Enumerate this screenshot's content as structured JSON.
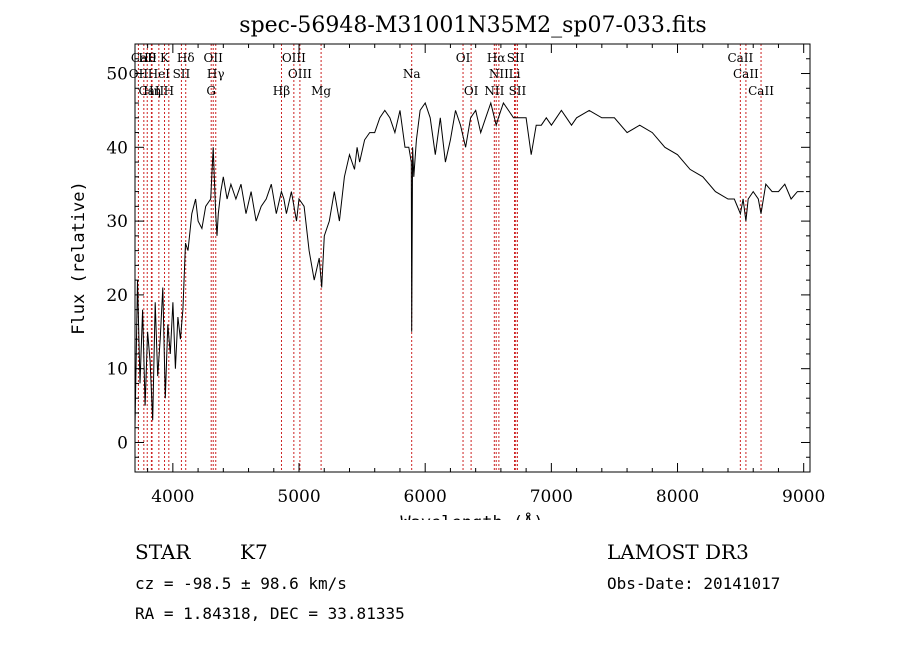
{
  "chart_data": {
    "type": "line",
    "title": "spec-56948-M31001N35M2_sp07-033.fits",
    "xlabel": "Wavelength (Å)",
    "ylabel": "Flux (relative)",
    "xlim": [
      3700,
      9050
    ],
    "ylim": [
      -4,
      54
    ],
    "xticks": [
      4000,
      5000,
      6000,
      7000,
      8000,
      9000
    ],
    "yticks": [
      0,
      10,
      20,
      30,
      40,
      50
    ],
    "series": [
      {
        "name": "spectrum",
        "x": [
          3700,
          3720,
          3740,
          3760,
          3780,
          3800,
          3820,
          3840,
          3860,
          3880,
          3900,
          3920,
          3940,
          3960,
          3980,
          4000,
          4020,
          4040,
          4060,
          4080,
          4100,
          4120,
          4150,
          4180,
          4200,
          4230,
          4260,
          4300,
          4320,
          4340,
          4350,
          4360,
          4380,
          4400,
          4430,
          4460,
          4500,
          4540,
          4580,
          4620,
          4660,
          4700,
          4740,
          4780,
          4820,
          4860,
          4880,
          4900,
          4940,
          4980,
          5000,
          5040,
          5080,
          5120,
          5160,
          5180,
          5200,
          5240,
          5280,
          5320,
          5360,
          5400,
          5440,
          5460,
          5480,
          5520,
          5560,
          5600,
          5640,
          5680,
          5720,
          5760,
          5800,
          5840,
          5870,
          5890,
          5893,
          5900,
          5910,
          5930,
          5960,
          6000,
          6040,
          6080,
          6120,
          6160,
          6200,
          6240,
          6280,
          6320,
          6360,
          6400,
          6440,
          6480,
          6520,
          6563,
          6580,
          6620,
          6660,
          6700,
          6740,
          6780,
          6800,
          6840,
          6880,
          6920,
          6960,
          7000,
          7040,
          7080,
          7120,
          7160,
          7200,
          7300,
          7400,
          7500,
          7600,
          7700,
          7800,
          7900,
          8000,
          8100,
          8200,
          8300,
          8400,
          8450,
          8498,
          8520,
          8542,
          8560,
          8600,
          8640,
          8662,
          8700,
          8750,
          8800,
          8850,
          8900,
          8950,
          9000
        ],
        "y": [
          2,
          22,
          8,
          18,
          5,
          15,
          11,
          3,
          19,
          9,
          14,
          21,
          6,
          16,
          12,
          19,
          10,
          17,
          14,
          18,
          27,
          26,
          31,
          33,
          30,
          29,
          32,
          33,
          40,
          31,
          28,
          31,
          34,
          36,
          33,
          35,
          33,
          35,
          31,
          34,
          30,
          32,
          33,
          35,
          31,
          34,
          33,
          31,
          34,
          30,
          33,
          32,
          26,
          22,
          25,
          21,
          28,
          30,
          34,
          30,
          36,
          39,
          37,
          40,
          38,
          41,
          42,
          42,
          44,
          45,
          44,
          42,
          45,
          40,
          40,
          38,
          15,
          40,
          36,
          41,
          45,
          46,
          44,
          39,
          44,
          38,
          41,
          45,
          43,
          40,
          44,
          45,
          42,
          44,
          46,
          43,
          44,
          46,
          45,
          44,
          44,
          44,
          44,
          39,
          43,
          43,
          44,
          43,
          44,
          45,
          44,
          43,
          44,
          45,
          44,
          44,
          42,
          43,
          42,
          40,
          39,
          37,
          36,
          34,
          33,
          33,
          31,
          33,
          30,
          33,
          34,
          33,
          31,
          35,
          34,
          34,
          35,
          33,
          34,
          34
        ]
      }
    ],
    "spectral_lines": [
      {
        "label": "Hθ",
        "wl": 3797,
        "row": 1
      },
      {
        "label": "CaII",
        "wl": 3770,
        "row": 1
      },
      {
        "label": "K",
        "wl": 3934,
        "row": 1
      },
      {
        "label": "Hδ",
        "wl": 4102,
        "row": 1
      },
      {
        "label": "OII",
        "wl": 4320,
        "row": 1
      },
      {
        "label": "OIII",
        "wl": 4959,
        "row": 1
      },
      {
        "label": "OI",
        "wl": 6300,
        "row": 1
      },
      {
        "label": "Hα",
        "wl": 6563,
        "row": 1
      },
      {
        "label": "SII",
        "wl": 6717,
        "row": 1
      },
      {
        "label": "CaII",
        "wl": 8498,
        "row": 1
      },
      {
        "label": "OII",
        "wl": 3727,
        "row": 2
      },
      {
        "label": "HeI",
        "wl": 3889,
        "row": 2
      },
      {
        "label": "SII",
        "wl": 4068,
        "row": 2
      },
      {
        "label": "Hγ",
        "wl": 4340,
        "row": 2
      },
      {
        "label": "OIII",
        "wl": 5007,
        "row": 2
      },
      {
        "label": "Na",
        "wl": 5893,
        "row": 2
      },
      {
        "label": "NII",
        "wl": 6584,
        "row": 2
      },
      {
        "label": "Li",
        "wl": 6708,
        "row": 2
      },
      {
        "label": "CaII",
        "wl": 8542,
        "row": 2
      },
      {
        "label": "CaII",
        "wl": 3830,
        "row": 3
      },
      {
        "label": "Hη",
        "wl": 3835,
        "row": 3
      },
      {
        "label": "H",
        "wl": 3968,
        "row": 3
      },
      {
        "label": "G",
        "wl": 4304,
        "row": 3
      },
      {
        "label": "Hβ",
        "wl": 4861,
        "row": 3
      },
      {
        "label": "Mg",
        "wl": 5175,
        "row": 3
      },
      {
        "label": "OI",
        "wl": 6364,
        "row": 3
      },
      {
        "label": "NII",
        "wl": 6548,
        "row": 3
      },
      {
        "label": "SII",
        "wl": 6731,
        "row": 3
      },
      {
        "label": "CaII",
        "wl": 8662,
        "row": 3
      }
    ],
    "line_color": "#cc2222"
  },
  "info": {
    "object_class": "STAR",
    "subclass": "K7",
    "survey": "LAMOST DR3",
    "redshift": "cz = -98.5 ± 98.6 km/s",
    "obs_date": "Obs-Date: 20141017",
    "coords": "RA =   1.84318, DEC =  33.81335"
  }
}
